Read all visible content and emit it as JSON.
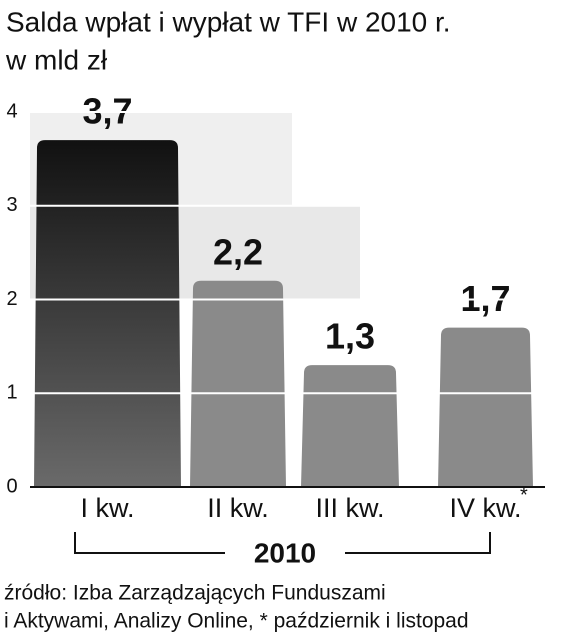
{
  "chart_data": {
    "type": "bar",
    "title": "Salda wpłat i wypłat w TFI w 2010 r.",
    "subtitle": "w mld zł",
    "categories": [
      "I kw.",
      "II kw.",
      "III kw.",
      "IV kw."
    ],
    "category_note": "*",
    "values": [
      3.7,
      2.2,
      1.3,
      1.7
    ],
    "value_labels": [
      "3,7",
      "2,2",
      "1,3",
      "1,7"
    ],
    "colors": [
      "#1e1e1e",
      "#8a8a8a",
      "#8a8a8a",
      "#8a8a8a"
    ],
    "ylim": [
      0,
      4
    ],
    "yticks": [
      0,
      1,
      2,
      3,
      4
    ],
    "grid": true,
    "group_label": "2010",
    "source": [
      "źródło: Izba Zarządzających Funduszami",
      "i Aktywami, Analizy Online, * październik i listopad"
    ]
  }
}
